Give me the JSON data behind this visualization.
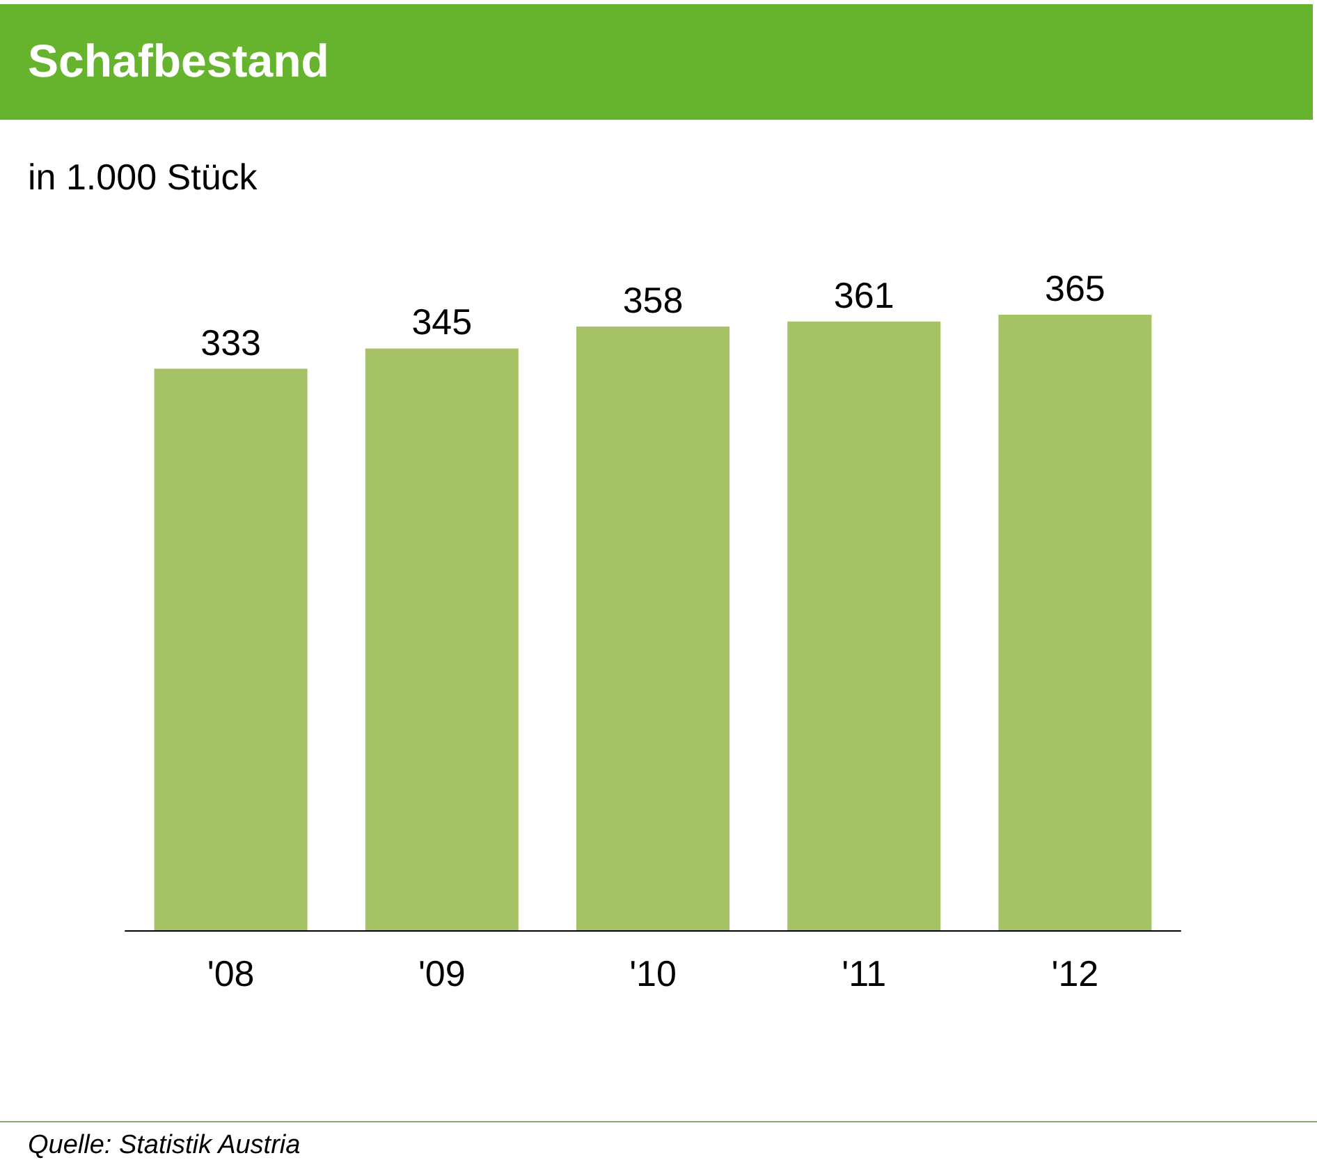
{
  "chart_data": {
    "type": "bar",
    "title": "Schafbestand",
    "subtitle": "in 1.000 Stück",
    "categories": [
      "'08",
      "'09",
      "'10",
      "'11",
      "'12"
    ],
    "values": [
      333,
      345,
      358,
      361,
      365
    ],
    "color": "#a5c264",
    "data_labels": true,
    "annotations": [
      "Quelle: Statistik Austria"
    ]
  }
}
